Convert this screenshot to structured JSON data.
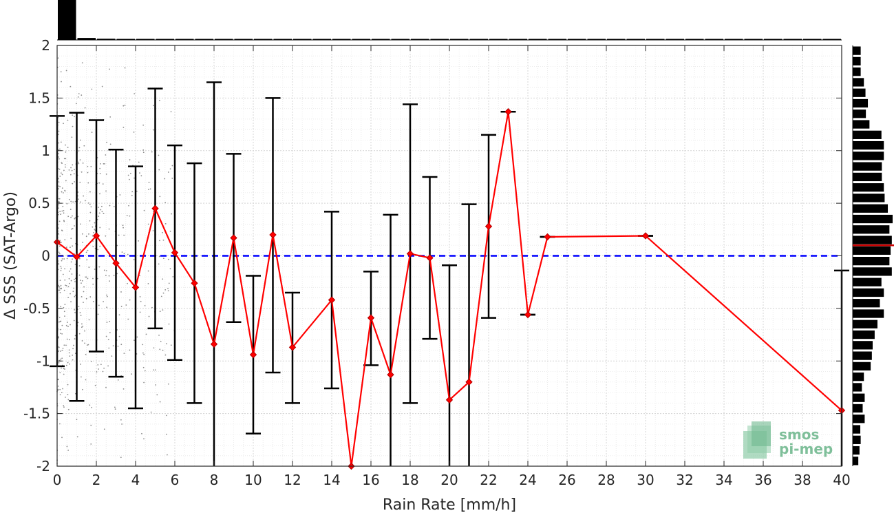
{
  "chart_data": {
    "type": "line",
    "xlabel": "Rain Rate [mm/h]",
    "ylabel": "Δ SSS (SAT-Argo)",
    "xlim": [
      0,
      40
    ],
    "ylim": [
      -2,
      2
    ],
    "xticks": [
      0,
      2,
      4,
      6,
      8,
      10,
      12,
      14,
      16,
      18,
      20,
      22,
      24,
      26,
      28,
      30,
      32,
      34,
      36,
      38,
      40
    ],
    "yticks": [
      -2,
      -1.5,
      -1,
      -0.5,
      0,
      0.5,
      1,
      1.5,
      2
    ],
    "ytick_labels": [
      "-2",
      "-1.5",
      "-1",
      "-0.5",
      "0",
      "0.5",
      "1",
      "1.5",
      "2"
    ],
    "grid": true,
    "reference_line": {
      "y": 0,
      "style": "dashed",
      "color": "#0000ff"
    },
    "series": [
      {
        "color": "#ff0000",
        "marker": "diamond",
        "x": [
          0,
          1,
          2,
          3,
          4,
          5,
          6,
          7,
          8,
          9,
          10,
          11,
          12,
          14,
          15,
          16,
          17,
          18,
          19,
          20,
          21,
          22,
          23,
          24,
          25,
          30,
          40
        ],
        "y": [
          0.13,
          -0.01,
          0.19,
          -0.07,
          -0.3,
          0.45,
          0.03,
          -0.26,
          -0.84,
          0.17,
          -0.94,
          0.2,
          -0.87,
          -0.42,
          -2.0,
          -0.59,
          -1.13,
          0.02,
          -0.02,
          -1.37,
          -1.2,
          0.28,
          1.37,
          -0.56,
          0.18,
          0.19,
          -1.47
        ],
        "err_low": [
          -1.05,
          -1.38,
          -0.91,
          -1.15,
          -1.45,
          -0.69,
          -0.99,
          -1.4,
          -2.0,
          -0.63,
          -1.69,
          -1.11,
          -1.4,
          -1.26,
          -2.0,
          -1.04,
          -2.0,
          -1.4,
          -0.79,
          -2.0,
          -2.0,
          -0.59,
          1.37,
          -0.56,
          0.18,
          0.19,
          -2.0
        ],
        "err_high": [
          1.33,
          1.36,
          1.29,
          1.01,
          0.85,
          1.59,
          1.05,
          0.88,
          1.65,
          0.97,
          -0.19,
          1.5,
          -0.35,
          0.42,
          -2.0,
          -0.15,
          0.39,
          1.44,
          0.75,
          -0.09,
          0.49,
          1.15,
          1.37,
          -0.56,
          0.18,
          0.19,
          -0.14
        ]
      }
    ],
    "top_histogram": {
      "color": "#000000",
      "bins": [
        0,
        1,
        2,
        3,
        4,
        5,
        6,
        7,
        8,
        9,
        10,
        11,
        12,
        13,
        14,
        15,
        16,
        17,
        18,
        19,
        20,
        21,
        22,
        23,
        24,
        25,
        26,
        27,
        28,
        29,
        30,
        31,
        32,
        33,
        34,
        35,
        36,
        37,
        38,
        39
      ],
      "counts": [
        1.0,
        0.05,
        0.03,
        0.02,
        0.015,
        0.01,
        0.01,
        0.008,
        0.008,
        0.006,
        0.006,
        0.005,
        0.005,
        0.004,
        0.004,
        0.004,
        0.003,
        0.003,
        0.003,
        0.003,
        0.003,
        0.003,
        0.003,
        0.003,
        0.003,
        0.003,
        0.002,
        0.002,
        0.002,
        0.002,
        0.01,
        0.002,
        0.002,
        0.002,
        0.002,
        0.002,
        0.002,
        0.002,
        0.002,
        0.002
      ]
    },
    "right_histogram": {
      "color": "#000000",
      "mean_line_color": "#cc0000",
      "mean_value": 0.1,
      "bin_centers": [
        -1.95,
        -1.85,
        -1.75,
        -1.65,
        -1.55,
        -1.45,
        -1.35,
        -1.25,
        -1.15,
        -1.05,
        -0.95,
        -0.85,
        -0.75,
        -0.65,
        -0.55,
        -0.45,
        -0.35,
        -0.25,
        -0.15,
        -0.05,
        0.05,
        0.15,
        0.25,
        0.35,
        0.45,
        0.55,
        0.65,
        0.75,
        0.85,
        0.95,
        1.05,
        1.15,
        1.25,
        1.35,
        1.45,
        1.55,
        1.65,
        1.75,
        1.85,
        1.95
      ],
      "counts": [
        0.14,
        0.17,
        0.2,
        0.19,
        0.3,
        0.25,
        0.3,
        0.23,
        0.28,
        0.45,
        0.48,
        0.5,
        0.55,
        0.62,
        0.78,
        0.68,
        0.78,
        0.72,
        0.98,
        0.92,
        0.95,
        0.98,
        0.92,
        1.0,
        0.88,
        0.8,
        0.78,
        0.73,
        0.73,
        0.78,
        0.78,
        0.72,
        0.42,
        0.33,
        0.38,
        0.32,
        0.28,
        0.2,
        0.2,
        0.2
      ]
    }
  },
  "logo": {
    "line1": "smos",
    "line2": "pi-mep",
    "color": "#7fbf9a"
  }
}
